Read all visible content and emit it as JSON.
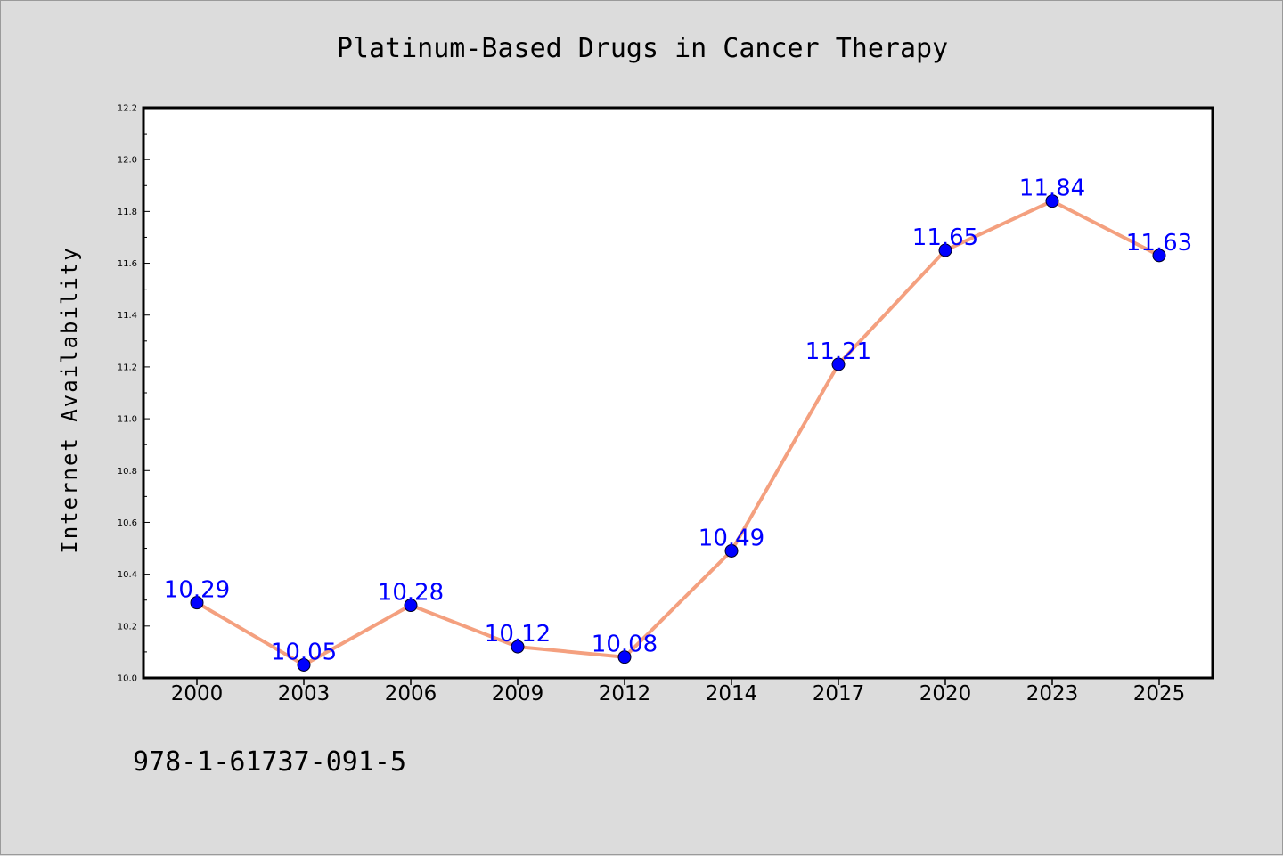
{
  "colors": {
    "background": "#dcdcdc",
    "plot_background": "#ffffff",
    "line": "#f4a07f",
    "marker": "#0000ff",
    "data_label": "#0000ff"
  },
  "footnote": "978-1-61737-091-5",
  "chart_data": {
    "type": "line",
    "title": "Platinum-Based Drugs in Cancer Therapy",
    "xlabel": "",
    "ylabel": "Internet Availability",
    "categories": [
      "2000",
      "2003",
      "2006",
      "2009",
      "2012",
      "2014",
      "2017",
      "2020",
      "2023",
      "2025"
    ],
    "series": [
      {
        "values": [
          10.29,
          10.05,
          10.28,
          10.12,
          10.08,
          10.49,
          11.21,
          11.65,
          11.84,
          11.63
        ],
        "labels": [
          "10.29",
          "10.05",
          "10.28",
          "10.12",
          "10.08",
          "10.49",
          "11.21",
          "11.65",
          "11.84",
          "11.63"
        ]
      }
    ],
    "ylim": [
      10.0,
      12.2
    ],
    "yticks": [
      "10.0",
      "10.2",
      "10.4",
      "10.6",
      "10.8",
      "11.0",
      "11.2",
      "11.4",
      "11.6",
      "11.8",
      "12.0",
      "12.2"
    ],
    "grid": false,
    "legend": "none"
  }
}
